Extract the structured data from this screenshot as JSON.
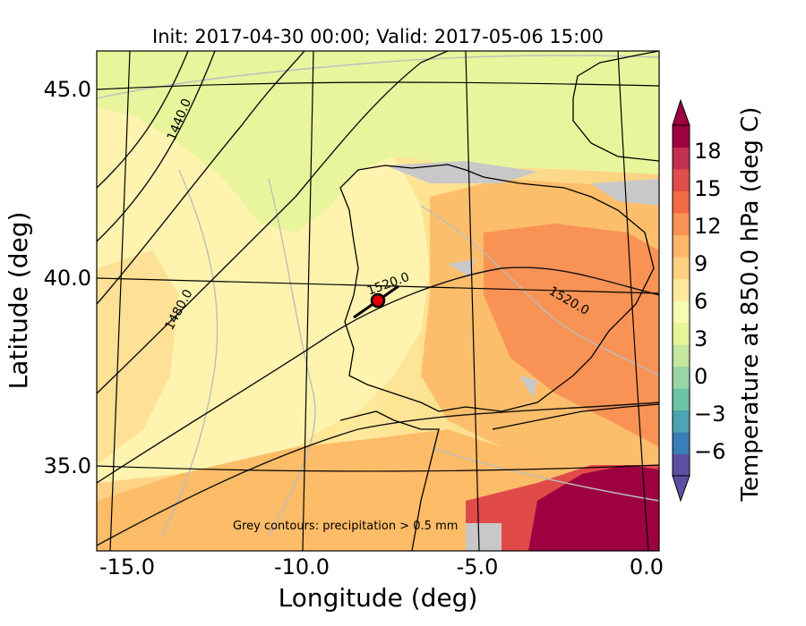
{
  "title": "Init: 2017-04-30 00:00; Valid: 2017-05-06 15:00",
  "axes": {
    "xlabel": "Longitude (deg)",
    "ylabel": "Latitude (deg)",
    "xticks": [
      "-15.0",
      "-10.0",
      "-5.0",
      "0.0"
    ],
    "yticks": [
      "45.0",
      "40.0",
      "35.0"
    ]
  },
  "colorbar": {
    "label": "Temperature at 850.0 hPa (deg C)",
    "ticks": [
      "18",
      "15",
      "12",
      "9",
      "6",
      "3",
      "0",
      "−3",
      "−6"
    ],
    "colors": [
      "#5e4fa2",
      "#3a7eb8",
      "#4ba4b1",
      "#6bc4a4",
      "#99d5a4",
      "#c3e79f",
      "#e6f598",
      "#f6fbb2",
      "#fee99a",
      "#fdd082",
      "#fdb567",
      "#f99355",
      "#f26b43",
      "#de4e4b",
      "#c4304f",
      "#9e0142"
    ]
  },
  "annotation": "Grey contours: precipitation > 0.5 mm",
  "contour_labels": [
    "1440.0",
    "1480.0",
    "1520.0",
    "1520.0"
  ],
  "marker": {
    "lon": -7.8,
    "lat": 39.4,
    "color": "#e00000"
  },
  "chart_data": {
    "type": "heatmap",
    "title": "Init: 2017-04-30 00:00; Valid: 2017-05-06 15:00",
    "xlabel": "Longitude (deg)",
    "ylabel": "Latitude (deg)",
    "xlim": [
      -16,
      0
    ],
    "ylim": [
      33,
      46
    ],
    "field": "Temperature at 850.0 hPa (deg C)",
    "colorbar_range": [
      -8,
      20
    ],
    "geopotential_contours": [
      1440.0,
      1480.0,
      1520.0
    ]
  }
}
